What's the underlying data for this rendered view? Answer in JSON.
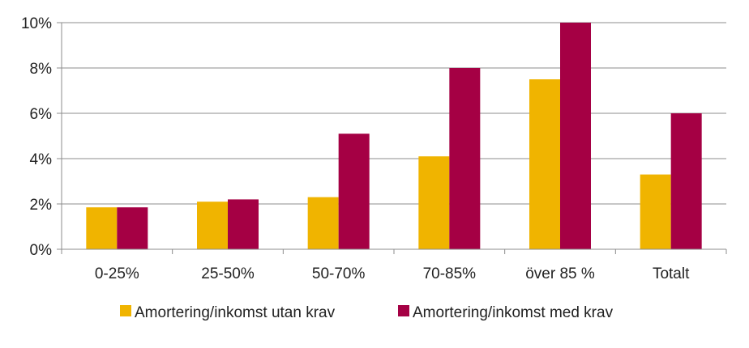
{
  "chart_data": {
    "type": "bar",
    "categories": [
      "0-25%",
      "25-50%",
      "50-70%",
      "70-85%",
      "över 85 %",
      "Totalt"
    ],
    "series": [
      {
        "name": "Amortering/inkomst utan krav",
        "color": "#F0B400",
        "values": [
          1.85,
          2.1,
          2.3,
          4.1,
          7.5,
          3.3
        ]
      },
      {
        "name": "Amortering/inkomst med krav",
        "color": "#A50044",
        "values": [
          1.85,
          2.2,
          5.1,
          8.0,
          10.0,
          6.0
        ]
      }
    ],
    "ylim": [
      0,
      10
    ],
    "yticks": [
      0,
      2,
      4,
      6,
      8,
      10
    ],
    "ytick_labels": [
      "0%",
      "2%",
      "4%",
      "6%",
      "8%",
      "10%"
    ],
    "grid": true,
    "legend": "bottom",
    "title": "",
    "xlabel": "",
    "ylabel": ""
  }
}
